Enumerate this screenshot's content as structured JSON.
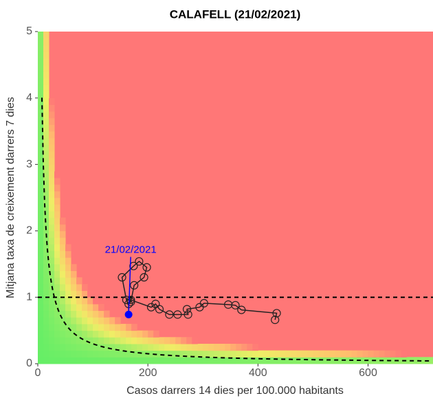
{
  "chart_data": {
    "type": "line",
    "title": "CALAFELL (21/02/2021)",
    "x_label": "Casos darrers 14 dies per 100.000 habitants",
    "y_label": "Mitjana taxa de creixement darrers 7 dies",
    "xlim": [
      0,
      718
    ],
    "ylim": [
      0,
      5
    ],
    "xticks": [
      0,
      200,
      400,
      600
    ],
    "yticks": [
      0,
      1,
      2,
      3,
      4,
      5
    ],
    "reference_y": 1,
    "x": [
      431,
      434,
      370,
      359,
      346,
      302,
      294,
      271,
      273,
      254,
      239,
      221,
      214,
      206,
      169,
      161,
      153,
      174,
      184,
      198,
      193,
      175,
      169,
      165,
      165
    ],
    "y": [
      0.66,
      0.76,
      0.81,
      0.88,
      0.89,
      0.91,
      0.85,
      0.82,
      0.74,
      0.74,
      0.74,
      0.82,
      0.9,
      0.85,
      0.96,
      0.96,
      1.3,
      1.47,
      1.54,
      1.45,
      1.3,
      1.18,
      0.93,
      0.9,
      0.74
    ],
    "line_color": "#222222",
    "current_color": "#0000ff",
    "current_label": "21/02/2021"
  }
}
